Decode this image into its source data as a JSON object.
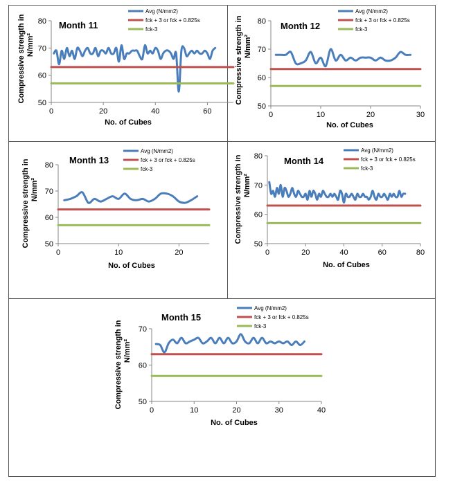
{
  "chart_data": [
    {
      "type": "line",
      "title": "Month 11",
      "xlabel": "No. of Cubes",
      "ylabel_line1": "Compressive strength in",
      "ylabel_line2": "N/mm²",
      "xlim": [
        0,
        70
      ],
      "ylim": [
        50,
        80
      ],
      "xticks": [
        0,
        20,
        40,
        60
      ],
      "yticks": [
        50,
        60,
        70,
        80
      ],
      "series": [
        {
          "name": "Avg (N/mm2)",
          "color": "#4a7ebb",
          "x": [
            1,
            2,
            3,
            4,
            5,
            6,
            7,
            8,
            9,
            10,
            11,
            12,
            13,
            14,
            15,
            16,
            17,
            18,
            19,
            20,
            21,
            22,
            23,
            24,
            25,
            26,
            27,
            28,
            29,
            30,
            31,
            32,
            33,
            34,
            35,
            36,
            37,
            38,
            39,
            40,
            41,
            42,
            43,
            44,
            45,
            46,
            47,
            48,
            49,
            50,
            51,
            52,
            53,
            54,
            55,
            56,
            57,
            58,
            59,
            60,
            61,
            62,
            63
          ],
          "y": [
            68,
            69,
            64,
            69,
            66,
            70,
            67,
            69,
            66,
            70,
            69,
            67,
            69,
            70,
            68,
            68,
            70,
            67,
            69,
            69,
            68,
            70,
            68,
            68,
            70,
            65,
            71,
            66,
            68,
            68,
            69,
            69,
            69,
            67,
            66,
            71,
            68,
            69,
            68,
            70,
            69,
            66,
            68,
            69,
            69,
            68,
            66,
            68,
            54,
            69,
            70,
            67,
            68,
            69,
            68,
            69,
            68,
            68,
            69,
            68,
            66,
            69,
            70
          ]
        },
        {
          "name": "fck + 3 or fck + 0.825s",
          "color": "#c0504d",
          "x": [
            0,
            70
          ],
          "y": [
            63,
            63
          ]
        },
        {
          "name": "fck-3",
          "color": "#9bbb59",
          "x": [
            0,
            70
          ],
          "y": [
            57,
            57
          ]
        }
      ]
    },
    {
      "type": "line",
      "title": "Month 12",
      "xlabel": "No. of Cubes",
      "ylabel_line1": "Compressive strength in",
      "ylabel_line2": "N/mm²",
      "xlim": [
        0,
        30
      ],
      "ylim": [
        50,
        80
      ],
      "xticks": [
        0,
        10,
        20,
        30
      ],
      "yticks": [
        50,
        60,
        70,
        80
      ],
      "series": [
        {
          "name": "Avg (N/mm2)",
          "color": "#4a7ebb",
          "x": [
            1,
            2,
            3,
            4,
            5,
            6,
            7,
            8,
            9,
            10,
            11,
            12,
            13,
            14,
            15,
            16,
            17,
            18,
            19,
            20,
            21,
            22,
            23,
            24,
            25,
            26,
            27,
            28
          ],
          "y": [
            68,
            68,
            68,
            69,
            65,
            65,
            66,
            69,
            65,
            67,
            64,
            70,
            66,
            68,
            66,
            67,
            66,
            67,
            67,
            67,
            66,
            67,
            66,
            66,
            67,
            69,
            68,
            68
          ]
        },
        {
          "name": "fck + 3 or fck + 0.825s",
          "color": "#c0504d",
          "x": [
            0,
            30
          ],
          "y": [
            63,
            63
          ]
        },
        {
          "name": "fck-3",
          "color": "#9bbb59",
          "x": [
            0,
            30
          ],
          "y": [
            57,
            57
          ]
        }
      ]
    },
    {
      "type": "line",
      "title": "Month 13",
      "xlabel": "No. of Cubes",
      "ylabel_line1": "Compressive strength in",
      "ylabel_line2": "N/mm²",
      "xlim": [
        0,
        25
      ],
      "ylim": [
        50,
        80
      ],
      "xticks": [
        0,
        10,
        20
      ],
      "yticks": [
        50,
        60,
        70,
        80
      ],
      "series": [
        {
          "name": "Avg (N/mm2)",
          "color": "#4a7ebb",
          "x": [
            1,
            2,
            3,
            4,
            5,
            6,
            7,
            8,
            9,
            10,
            11,
            12,
            13,
            14,
            15,
            16,
            17,
            18,
            19,
            20,
            21,
            22,
            23
          ],
          "y": [
            66.5,
            67,
            68,
            69.5,
            65.5,
            67,
            66,
            67,
            68,
            67,
            69,
            67,
            66.5,
            67,
            66,
            67,
            69,
            69,
            68,
            66,
            65.5,
            66.5,
            68
          ]
        },
        {
          "name": "fck + 3 or fck + 0.825s",
          "color": "#c0504d",
          "x": [
            0,
            25
          ],
          "y": [
            63,
            63
          ]
        },
        {
          "name": "fck-3",
          "color": "#9bbb59",
          "x": [
            0,
            25
          ],
          "y": [
            57,
            57
          ]
        }
      ]
    },
    {
      "type": "line",
      "title": "Month 14",
      "xlabel": "No. of Cubes",
      "ylabel_line1": "Compressive strength in",
      "ylabel_line2": "N/mm²",
      "xlim": [
        0,
        80
      ],
      "ylim": [
        50,
        80
      ],
      "xticks": [
        0,
        20,
        40,
        60,
        80
      ],
      "yticks": [
        50,
        60,
        70,
        80
      ],
      "series": [
        {
          "name": "Avg (N/mm2)",
          "color": "#4a7ebb",
          "x": [
            1,
            2,
            3,
            4,
            5,
            6,
            7,
            8,
            9,
            10,
            11,
            12,
            13,
            14,
            15,
            16,
            17,
            18,
            19,
            20,
            21,
            22,
            23,
            24,
            25,
            26,
            27,
            28,
            29,
            30,
            31,
            32,
            33,
            34,
            35,
            36,
            37,
            38,
            39,
            40,
            41,
            42,
            43,
            44,
            45,
            46,
            47,
            48,
            49,
            50,
            51,
            52,
            53,
            54,
            55,
            56,
            57,
            58,
            59,
            60,
            61,
            62,
            63,
            64,
            65,
            66,
            67,
            68,
            69,
            70,
            71,
            72
          ],
          "y": [
            71,
            67,
            68,
            66,
            69,
            67,
            70,
            66,
            69,
            68,
            66,
            67,
            69,
            67,
            66,
            68,
            67,
            66,
            66,
            67,
            65,
            68,
            66,
            68,
            67,
            65,
            67,
            66,
            68,
            67,
            66,
            66,
            67,
            66,
            67,
            66,
            65,
            68,
            67,
            64,
            67,
            66,
            66,
            67,
            66,
            65,
            67,
            66,
            66,
            67,
            66,
            66,
            65,
            66,
            68,
            66,
            65,
            67,
            66,
            66,
            67,
            66,
            65,
            67,
            66,
            67,
            66,
            66,
            68,
            66,
            67,
            67
          ]
        },
        {
          "name": "fck + 3 or fck + 0.825s",
          "color": "#c0504d",
          "x": [
            0,
            80
          ],
          "y": [
            63,
            63
          ]
        },
        {
          "name": "fck-3",
          "color": "#9bbb59",
          "x": [
            0,
            80
          ],
          "y": [
            57,
            57
          ]
        }
      ]
    },
    {
      "type": "line",
      "title": "Month 15",
      "xlabel": "No. of Cubes",
      "ylabel_line1": "Compressive strength in",
      "ylabel_line2": "N/mm²",
      "xlim": [
        0,
        40
      ],
      "ylim": [
        50,
        70
      ],
      "xticks": [
        0,
        10,
        20,
        30,
        40
      ],
      "yticks": [
        50,
        60,
        70
      ],
      "series": [
        {
          "name": "Avg (N/mm2)",
          "color": "#4a7ebb",
          "x": [
            1,
            2,
            3,
            4,
            5,
            6,
            7,
            8,
            9,
            10,
            11,
            12,
            13,
            14,
            15,
            16,
            17,
            18,
            19,
            20,
            21,
            22,
            23,
            24,
            25,
            26,
            27,
            28,
            29,
            30,
            31,
            32,
            33,
            34,
            35,
            36
          ],
          "y": [
            65.8,
            65.5,
            63.5,
            66,
            67,
            66,
            67.5,
            66,
            66.5,
            67,
            67.5,
            66,
            66.5,
            67.5,
            66,
            67.5,
            66,
            67.5,
            66,
            66.5,
            68.5,
            66.5,
            66,
            67.5,
            66,
            67.5,
            66,
            66.5,
            66,
            66.5,
            66,
            66.5,
            65.5,
            66.5,
            65.5,
            66.5
          ]
        },
        {
          "name": "fck + 3 or fck + 0.825s",
          "color": "#c0504d",
          "x": [
            0,
            40
          ],
          "y": [
            63,
            63
          ]
        },
        {
          "name": "fck-3",
          "color": "#9bbb59",
          "x": [
            0,
            40
          ],
          "y": [
            57,
            57
          ]
        }
      ]
    }
  ]
}
